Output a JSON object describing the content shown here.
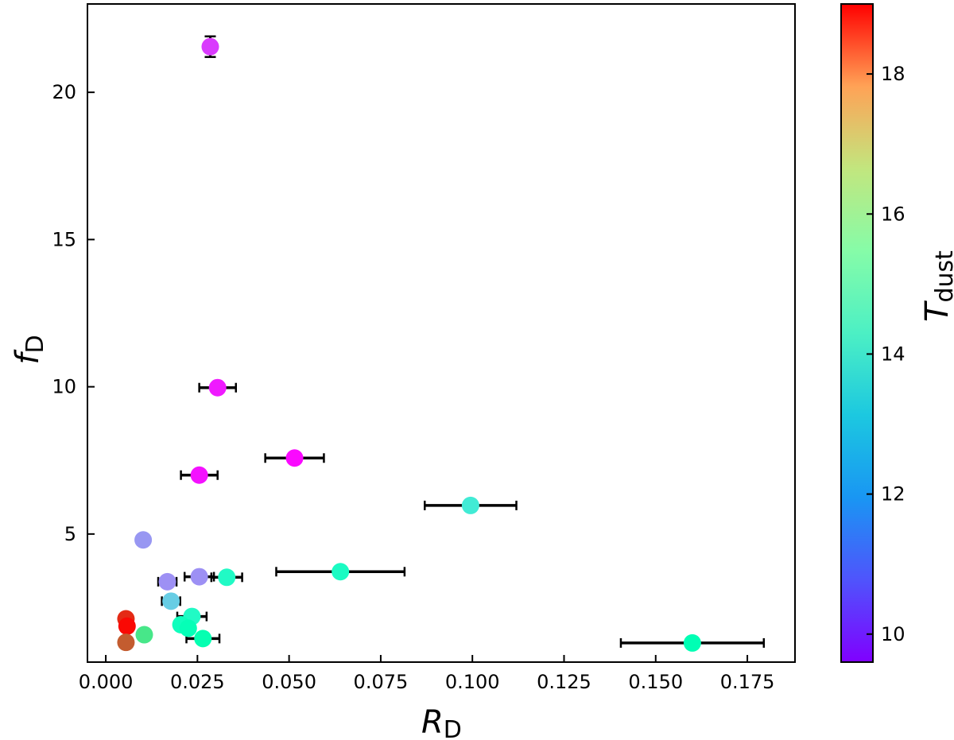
{
  "chart_data": {
    "type": "scatter",
    "title": "",
    "xlabel": {
      "main": "R",
      "sub": "D"
    },
    "ylabel": {
      "main": "f",
      "sub": "D"
    },
    "colorbar_label": {
      "main": "T",
      "sub": "dust"
    },
    "xlim": [
      -0.005,
      0.188
    ],
    "ylim": [
      0.65,
      23.0
    ],
    "xticks": [
      0.0,
      0.025,
      0.05,
      0.075,
      0.1,
      0.125,
      0.15,
      0.175
    ],
    "xtick_labels": [
      "0.000",
      "0.025",
      "0.050",
      "0.075",
      "0.100",
      "0.125",
      "0.150",
      "0.175"
    ],
    "yticks": [
      5,
      10,
      15,
      20
    ],
    "ytick_labels": [
      "5",
      "10",
      "15",
      "20"
    ],
    "colorbar": {
      "colormap": "rainbow",
      "range": [
        9.6,
        19.0
      ],
      "ticks": [
        10,
        12,
        14,
        16,
        18
      ],
      "tick_labels": [
        "10",
        "12",
        "14",
        "16",
        "18"
      ]
    },
    "grid": false,
    "legend": "none",
    "points": [
      {
        "x": 0.0285,
        "y": 21.55,
        "xerr": 0.0,
        "yerr": 0.35,
        "t": 10.3
      },
      {
        "x": 0.0305,
        "y": 9.97,
        "xerr": 0.005,
        "yerr": 0.0,
        "t": 9.9
      },
      {
        "x": 0.0515,
        "y": 7.58,
        "xerr": 0.008,
        "yerr": 0.0,
        "t": 9.7
      },
      {
        "x": 0.0255,
        "y": 7.0,
        "xerr": 0.005,
        "yerr": 0.0,
        "t": 9.8
      },
      {
        "x": 0.0995,
        "y": 5.97,
        "xerr": 0.0125,
        "yerr": 0.0,
        "t": 13.1
      },
      {
        "x": 0.0102,
        "y": 4.8,
        "xerr": 0.0,
        "yerr": 0.0,
        "t": 11.5
      },
      {
        "x": 0.0255,
        "y": 3.55,
        "xerr": 0.004,
        "yerr": 0.0,
        "t": 11.4
      },
      {
        "x": 0.033,
        "y": 3.53,
        "xerr": 0.0042,
        "yerr": 0.0,
        "t": 13.7
      },
      {
        "x": 0.064,
        "y": 3.72,
        "xerr": 0.0175,
        "yerr": 0.0,
        "t": 13.8
      },
      {
        "x": 0.0168,
        "y": 3.38,
        "xerr": 0.0025,
        "yerr": 0.0,
        "t": 11.4
      },
      {
        "x": 0.0178,
        "y": 2.72,
        "xerr": 0.0025,
        "yerr": 0.0,
        "t": 12.4
      },
      {
        "x": 0.0235,
        "y": 2.2,
        "xerr": 0.004,
        "yerr": 0.0,
        "t": 13.7
      },
      {
        "x": 0.0205,
        "y": 1.92,
        "xerr": 0.0,
        "yerr": 0.0,
        "t": 14.0
      },
      {
        "x": 0.0225,
        "y": 1.8,
        "xerr": 0.0,
        "yerr": 0.0,
        "t": 14.2
      },
      {
        "x": 0.0265,
        "y": 1.45,
        "xerr": 0.0045,
        "yerr": 0.0,
        "t": 14.4
      },
      {
        "x": 0.0055,
        "y": 2.12,
        "xerr": 0.0,
        "yerr": 0.0,
        "t": 18.5
      },
      {
        "x": 0.0058,
        "y": 1.87,
        "xerr": 0.0,
        "yerr": 0.0,
        "t": 18.9
      },
      {
        "x": 0.0055,
        "y": 1.32,
        "xerr": 0.0,
        "yerr": 0.0,
        "t": 17.9
      },
      {
        "x": 0.0105,
        "y": 1.58,
        "xerr": 0.0,
        "yerr": 0.0,
        "t": 15.6
      },
      {
        "x": 0.16,
        "y": 1.3,
        "xerr": 0.0195,
        "yerr": 0.0,
        "t": 14.3
      }
    ]
  }
}
